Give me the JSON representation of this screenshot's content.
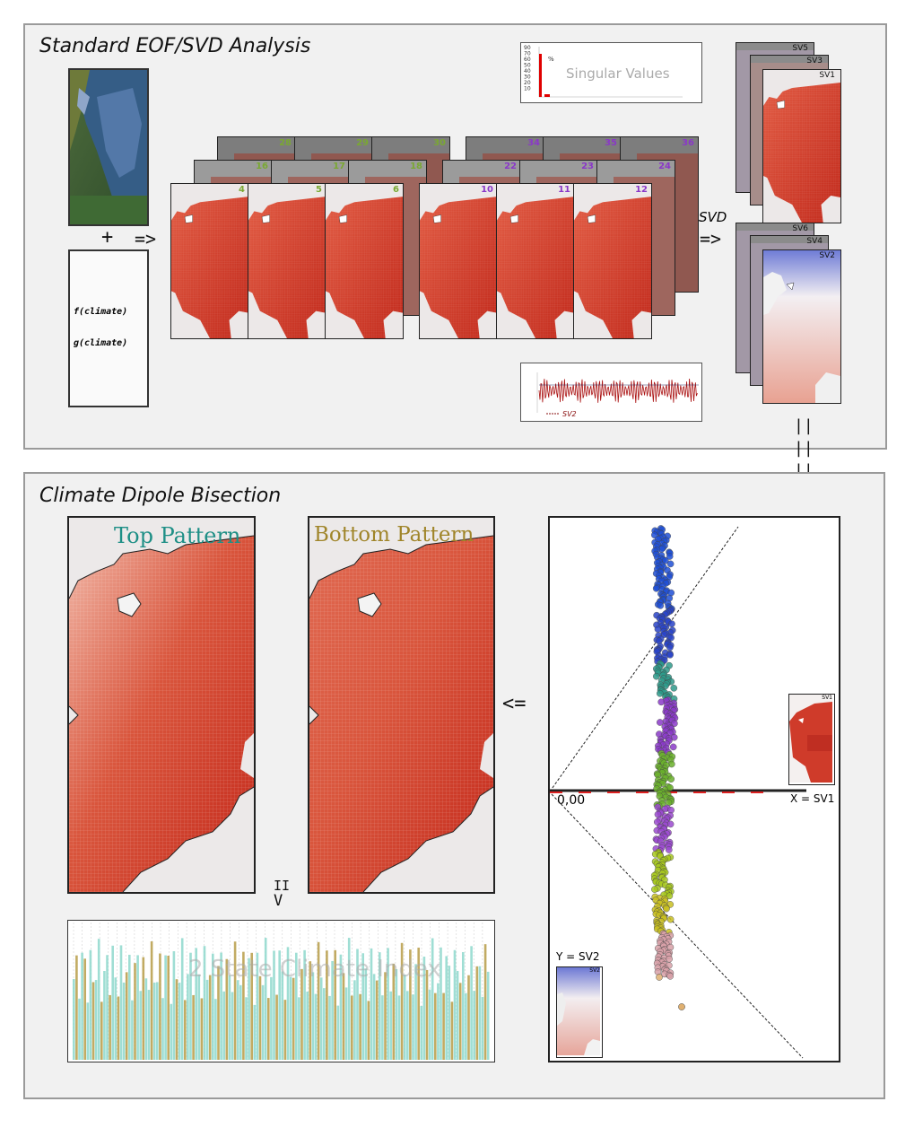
{
  "panels": {
    "top_title": "Standard EOF/SVD Analysis",
    "bottom_title": "Climate Dipole Bisection"
  },
  "inputs": {
    "plus": "+",
    "arrow_in": "=>",
    "f_label": "f(climate)",
    "g_label": "g(climate)"
  },
  "stack_groups": [
    {
      "numbers": [
        "4",
        "5",
        "6"
      ],
      "mid": [
        "16",
        "17",
        "18"
      ],
      "back": [
        "28",
        "29",
        "30"
      ],
      "color": "#7aa832"
    },
    {
      "numbers": [
        "10",
        "11",
        "12"
      ],
      "mid": [
        "22",
        "23",
        "24"
      ],
      "back": [
        "34",
        "35",
        "36"
      ],
      "color": "#8a38c8"
    }
  ],
  "singular_values": {
    "label": "Singular Values",
    "percent": "%",
    "ticks": [
      "90",
      "70",
      "60",
      "50",
      "40",
      "30",
      "20",
      "10"
    ],
    "bars": [
      60,
      3
    ]
  },
  "timeseries_small": {
    "legend": "SV2"
  },
  "svd": {
    "label": "SVD",
    "arrow": "=>"
  },
  "sv_stacks": {
    "top": [
      "SV5",
      "SV3",
      "SV1"
    ],
    "bottom": [
      "SV6",
      "SV4",
      "SV2"
    ]
  },
  "equals_down": "||",
  "down_arrow": "V",
  "bisection": {
    "top_pattern": "Top Pattern",
    "bottom_pattern": "Bottom Pattern",
    "arrow_left": "<=",
    "index_label": "2 State Climate Index",
    "origin_label": "0,00",
    "x_axis_label": "X = SV1",
    "y_axis_label": "Y = SV2",
    "inset_sv1": "SV1",
    "inset_sv2": "SV2",
    "equals": "II",
    "v": "V"
  },
  "colors": {
    "red_map": "#d6452f",
    "blue_map": "#7b86d6",
    "teal": "#7fd0c4",
    "olive": "#b89b3c"
  }
}
